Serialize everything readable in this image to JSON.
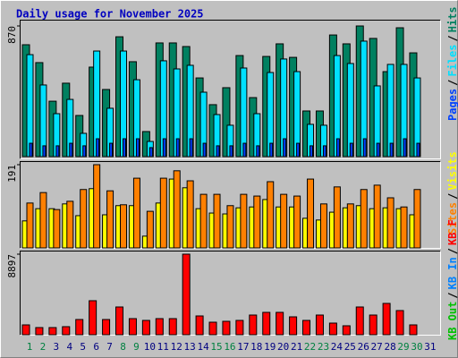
{
  "chart_data": [
    {
      "type": "bar",
      "title": "Daily usage for November 2025",
      "legend_separator": "/",
      "ylim": [
        0,
        870
      ],
      "yticks": [
        870
      ],
      "series": [
        {
          "name": "Hits",
          "color": "#008060",
          "values": [
            745,
            626,
            369,
            489,
            274,
            596,
            447,
            798,
            632,
            167,
            757,
            757,
            733,
            524,
            346,
            459,
            673,
            393,
            667,
            751,
            661,
            304,
            304,
            810,
            751,
            870,
            787,
            566,
            858,
            691,
            null
          ]
        },
        {
          "name": "Files",
          "color": "#00e0ff",
          "values": [
            679,
            477,
            286,
            381,
            155,
            703,
            322,
            703,
            512,
            101,
            638,
            584,
            608,
            429,
            280,
            209,
            590,
            286,
            560,
            650,
            566,
            215,
            209,
            673,
            620,
            769,
            471,
            614,
            614,
            524,
            null
          ]
        },
        {
          "name": "Pages",
          "color": "#0040ff",
          "values": [
            89,
            72,
            72,
            89,
            72,
            119,
            89,
            119,
            119,
            60,
            119,
            119,
            119,
            89,
            72,
            72,
            89,
            72,
            89,
            119,
            89,
            72,
            72,
            119,
            89,
            119,
            89,
            89,
            119,
            89,
            null
          ]
        }
      ]
    },
    {
      "type": "bar",
      "legend_separator": "/",
      "ylim": [
        0,
        191
      ],
      "yticks": [
        191
      ],
      "series": [
        {
          "name": "Visits",
          "color": "#ffff00",
          "values": [
            62,
            90,
            90,
            101,
            74,
            136,
            76,
            97,
            97,
            27,
            103,
            158,
            138,
            90,
            80,
            78,
            92,
            94,
            111,
            94,
            94,
            68,
            64,
            82,
            92,
            97,
            90,
            92,
            90,
            76,
            null
          ]
        },
        {
          "name": "Sites",
          "color": "#ff8000",
          "values": [
            103,
            127,
            88,
            107,
            134,
            191,
            131,
            99,
            160,
            84,
            160,
            177,
            154,
            123,
            123,
            97,
            123,
            119,
            152,
            123,
            119,
            158,
            101,
            140,
            101,
            134,
            144,
            115,
            94,
            134,
            null
          ]
        }
      ]
    },
    {
      "type": "bar",
      "legend_separator": "/",
      "ylim": [
        0,
        8897
      ],
      "yticks": [
        8897
      ],
      "categories": [
        "1",
        "2",
        "3",
        "4",
        "5",
        "6",
        "7",
        "8",
        "9",
        "10",
        "11",
        "12",
        "13",
        "14",
        "15",
        "16",
        "17",
        "18",
        "19",
        "20",
        "21",
        "22",
        "23",
        "24",
        "25",
        "26",
        "27",
        "28",
        "29",
        "30",
        "31"
      ],
      "category_colors": [
        "#008040",
        "#008040",
        "#000080",
        "#000080",
        "#000080",
        "#000080",
        "#000080",
        "#008040",
        "#008040",
        "#000080",
        "#000080",
        "#000080",
        "#000080",
        "#000080",
        "#008040",
        "#008040",
        "#000080",
        "#000080",
        "#000080",
        "#000080",
        "#000080",
        "#008040",
        "#008040",
        "#000080",
        "#000080",
        "#000080",
        "#000080",
        "#000080",
        "#008040",
        "#008040",
        "#000080"
      ],
      "series": [
        {
          "name": "KB F",
          "color": "#ff0000",
          "values": [
            1087,
            791,
            791,
            890,
            1681,
            3757,
            1681,
            3065,
            1779,
            1582,
            1779,
            1779,
            8897,
            2076,
            1384,
            1483,
            1582,
            2175,
            2471,
            2471,
            1977,
            1582,
            2175,
            1285,
            989,
            3065,
            2175,
            3460,
            2669,
            1087,
            null
          ]
        },
        {
          "name": "KB In",
          "color": "#0080ff"
        },
        {
          "name": "KB Out",
          "color": "#00c000"
        }
      ]
    }
  ]
}
